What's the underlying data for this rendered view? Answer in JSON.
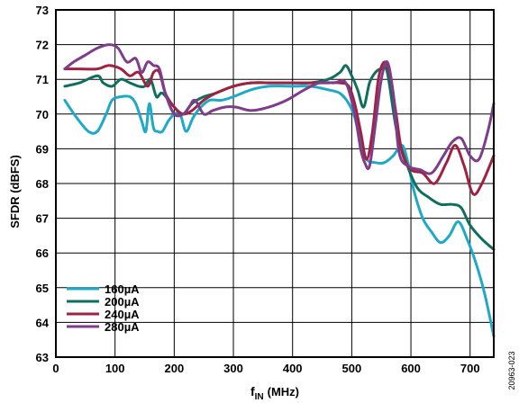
{
  "chart_data": {
    "type": "line",
    "xlabel": "f",
    "xlabel_sub": "IN",
    "xlabel_unit": "(MHz)",
    "ylabel": "SFDR (dBFS)",
    "xlim": [
      0,
      740
    ],
    "ylim": [
      63,
      73
    ],
    "xticks": [
      0,
      100,
      200,
      300,
      400,
      500,
      600,
      700
    ],
    "yticks": [
      63,
      64,
      65,
      66,
      67,
      68,
      69,
      70,
      71,
      72,
      73
    ],
    "grid": true,
    "legend_position": "bottom-left",
    "figure_code": "20963-023",
    "series": [
      {
        "name": "160µA",
        "color": "#1ea9c7",
        "x": [
          15,
          35,
          55,
          70,
          85,
          95,
          110,
          125,
          135,
          145,
          152,
          158,
          165,
          172,
          180,
          190,
          200,
          210,
          220,
          232,
          245,
          260,
          280,
          300,
          330,
          360,
          400,
          430,
          460,
          480,
          495,
          505,
          515,
          525,
          540,
          555,
          570,
          585,
          595,
          605,
          620,
          635,
          650,
          665,
          680,
          695,
          710,
          725,
          740
        ],
        "y": [
          70.4,
          69.9,
          69.5,
          69.5,
          70.0,
          70.4,
          70.5,
          70.5,
          70.3,
          69.8,
          69.5,
          70.3,
          69.6,
          69.5,
          69.5,
          69.8,
          70.0,
          70.0,
          69.5,
          69.9,
          70.2,
          70.4,
          70.4,
          70.5,
          70.7,
          70.8,
          70.8,
          70.8,
          70.7,
          70.6,
          70.3,
          69.9,
          69.2,
          68.7,
          68.6,
          68.6,
          68.8,
          69.1,
          68.6,
          67.8,
          67.0,
          66.6,
          66.3,
          66.5,
          66.9,
          66.4,
          65.7,
          64.8,
          63.6
        ]
      },
      {
        "name": "200µA",
        "color": "#116e5e",
        "x": [
          15,
          40,
          70,
          80,
          95,
          110,
          125,
          140,
          150,
          160,
          170,
          180,
          200,
          215,
          230,
          250,
          270,
          300,
          330,
          360,
          400,
          430,
          460,
          480,
          490,
          500,
          510,
          520,
          530,
          540,
          550,
          560,
          575,
          590,
          610,
          630,
          650,
          670,
          685,
          700,
          720,
          740
        ],
        "y": [
          70.8,
          70.9,
          71.1,
          70.9,
          70.8,
          71.0,
          70.9,
          70.8,
          70.8,
          71.0,
          70.5,
          70.6,
          70.2,
          70.0,
          70.3,
          70.5,
          70.6,
          70.8,
          70.9,
          70.9,
          70.9,
          70.9,
          71.0,
          71.2,
          71.4,
          71.1,
          70.7,
          70.2,
          70.9,
          71.2,
          71.3,
          71.2,
          69.6,
          68.7,
          67.9,
          67.6,
          67.4,
          67.4,
          67.3,
          66.8,
          66.4,
          66.1
        ]
      },
      {
        "name": "240µA",
        "color": "#9e2342",
        "x": [
          15,
          40,
          70,
          90,
          110,
          125,
          140,
          155,
          165,
          175,
          185,
          200,
          215,
          230,
          250,
          270,
          300,
          330,
          360,
          400,
          430,
          460,
          480,
          495,
          505,
          515,
          525,
          535,
          545,
          555,
          565,
          575,
          585,
          600,
          620,
          640,
          660,
          675,
          690,
          705,
          720,
          740
        ],
        "y": [
          71.3,
          71.3,
          71.3,
          71.4,
          71.3,
          71.1,
          71.2,
          70.8,
          71.2,
          71.2,
          70.6,
          70.2,
          70.0,
          70.1,
          70.4,
          70.6,
          70.8,
          70.9,
          70.9,
          70.9,
          70.9,
          70.9,
          70.9,
          70.8,
          70.3,
          69.5,
          68.7,
          69.5,
          71.0,
          71.5,
          71.1,
          70.0,
          68.9,
          68.4,
          68.3,
          68.0,
          68.6,
          69.1,
          68.5,
          67.7,
          68.0,
          68.8
        ]
      },
      {
        "name": "280µA",
        "color": "#7d3d8a",
        "x": [
          15,
          30,
          50,
          70,
          90,
          105,
          120,
          135,
          145,
          155,
          165,
          175,
          185,
          200,
          215,
          225,
          235,
          250,
          265,
          285,
          305,
          330,
          360,
          390,
          420,
          445,
          470,
          490,
          505,
          515,
          522,
          530,
          540,
          550,
          560,
          570,
          580,
          595,
          615,
          635,
          655,
          670,
          685,
          700,
          715,
          730,
          740
        ],
        "y": [
          71.3,
          71.5,
          71.7,
          71.9,
          72.0,
          71.9,
          71.5,
          71.6,
          71.2,
          71.5,
          71.4,
          71.3,
          70.6,
          70.0,
          70.0,
          70.2,
          70.4,
          70.0,
          70.1,
          70.2,
          70.2,
          70.1,
          70.2,
          70.4,
          70.7,
          70.9,
          70.9,
          70.9,
          70.0,
          69.0,
          68.6,
          68.5,
          69.7,
          71.0,
          71.5,
          70.6,
          68.9,
          68.5,
          68.4,
          68.3,
          68.8,
          69.2,
          69.3,
          68.8,
          68.7,
          69.5,
          70.3
        ]
      }
    ]
  }
}
